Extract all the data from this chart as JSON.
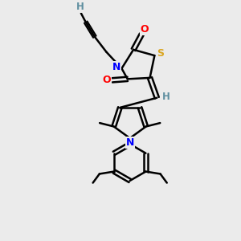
{
  "bg_color": "#ebebeb",
  "atom_colors": {
    "C": "#000000",
    "H": "#5f8fa0",
    "N": "#0000FF",
    "O": "#FF0000",
    "S": "#DAA520"
  },
  "bond_color": "#000000",
  "bond_width": 1.8,
  "figsize": [
    3.0,
    3.0
  ],
  "dpi": 100,
  "xlim": [
    0,
    10
  ],
  "ylim": [
    0,
    10
  ]
}
